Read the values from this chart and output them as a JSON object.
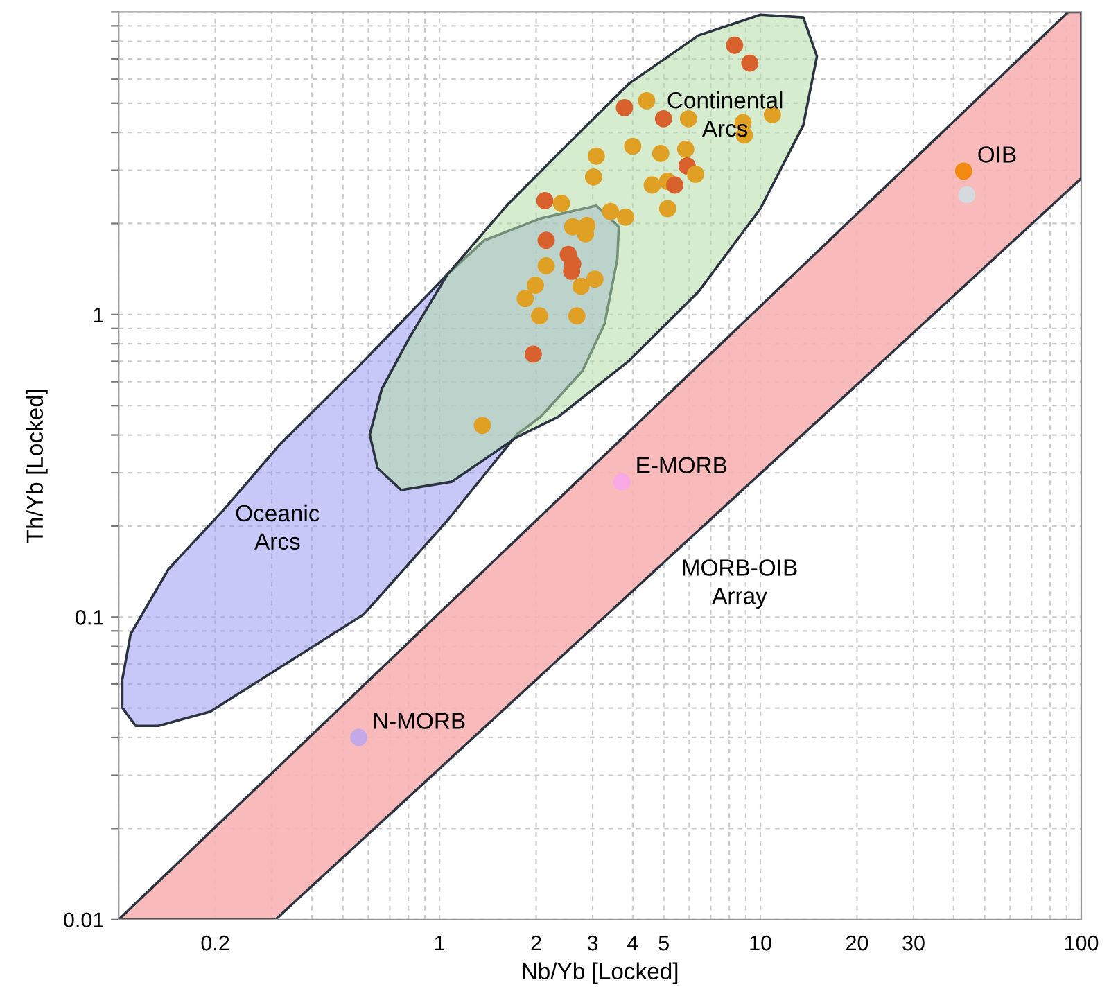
{
  "chart_data": {
    "type": "scatter",
    "xlabel": "Nb/Yb [Locked]",
    "ylabel": "Th/Yb [Locked]",
    "log": "xy",
    "grid": true,
    "xlim": [
      0.1,
      100
    ],
    "ylim": [
      0.01,
      10
    ],
    "xticks": [
      {
        "value": 0.1,
        "label": null
      },
      0.2,
      {
        "value": 0.3,
        "label": null
      },
      {
        "value": 0.4,
        "label": null
      },
      {
        "value": 0.5,
        "label": null
      },
      {
        "value": 0.6,
        "label": null
      },
      {
        "value": 0.7,
        "label": null
      },
      {
        "value": 0.8,
        "label": null
      },
      {
        "value": 0.9,
        "label": null
      },
      1,
      2,
      3,
      4,
      5,
      {
        "value": 6,
        "label": null
      },
      {
        "value": 7,
        "label": null
      },
      {
        "value": 8,
        "label": null
      },
      {
        "value": 9,
        "label": null
      },
      10,
      20,
      30,
      {
        "value": 40,
        "label": null
      },
      {
        "value": 50,
        "label": null
      },
      {
        "value": 60,
        "label": null
      },
      {
        "value": 70,
        "label": null
      },
      {
        "value": 80,
        "label": null
      },
      {
        "value": 90,
        "label": null
      },
      100
    ],
    "yticks": [
      0.01,
      {
        "value": 0.02,
        "label": null
      },
      {
        "value": 0.03,
        "label": null
      },
      {
        "value": 0.04,
        "label": null
      },
      {
        "value": 0.05,
        "label": null
      },
      {
        "value": 0.06,
        "label": null
      },
      {
        "value": 0.07,
        "label": null
      },
      {
        "value": 0.08,
        "label": null
      },
      {
        "value": 0.09,
        "label": null
      },
      0.1,
      {
        "value": 0.2,
        "label": null
      },
      {
        "value": 0.3,
        "label": null
      },
      {
        "value": 0.4,
        "label": null
      },
      {
        "value": 0.5,
        "label": null
      },
      {
        "value": 0.6,
        "label": null
      },
      {
        "value": 0.7,
        "label": null
      },
      {
        "value": 0.8,
        "label": null
      },
      {
        "value": 0.9,
        "label": null
      },
      1,
      {
        "value": 2,
        "label": null
      },
      {
        "value": 3,
        "label": null
      },
      {
        "value": 4,
        "label": null
      },
      {
        "value": 5,
        "label": null
      },
      {
        "value": 6,
        "label": null
      },
      {
        "value": 7,
        "label": null
      },
      {
        "value": 8,
        "label": null
      },
      {
        "value": 9,
        "label": null
      },
      {
        "value": 10,
        "label": null
      }
    ],
    "series": [
      {
        "type": "area",
        "name": "MORB-OIB\nArray",
        "color": "#f7b3b3",
        "x": [
          0.1,
          91,
          100,
          100,
          0.308
        ],
        "values": [
          0.01,
          10,
          10,
          2.82,
          0.01
        ]
      },
      {
        "type": "area",
        "name": "Oceanic\nArcs",
        "color": "#9a9af2",
        "x": [
          0.1026,
          0.1026,
          0.109,
          0.143,
          0.213,
          0.318,
          0.58,
          1.06,
          1.38,
          2.07,
          3.08,
          3.62,
          3.58,
          3.27,
          2.79,
          2.07,
          1.74,
          1.06,
          0.58,
          0.193,
          0.133,
          0.113
        ],
        "values": [
          0.0502,
          0.062,
          0.0879,
          0.144,
          0.227,
          0.372,
          0.701,
          1.36,
          1.76,
          2.08,
          2.29,
          1.95,
          1.52,
          0.933,
          0.652,
          0.46,
          0.401,
          0.209,
          0.102,
          0.0487,
          0.0437,
          0.0437
        ]
      },
      {
        "type": "area",
        "name": "Continental\nArcs",
        "color": "#b2dca8",
        "x": [
          1.06,
          1.63,
          2.35,
          3.88,
          6.41,
          10.0,
          13.6,
          15.0,
          13.6,
          10.0,
          6.41,
          3.88,
          2.35,
          1.74,
          1.09,
          0.759,
          0.641,
          0.606,
          0.661,
          0.806
        ],
        "values": [
          1.36,
          2.31,
          3.41,
          5.78,
          8.37,
          9.8,
          9.6,
          7.14,
          4.22,
          2.24,
          1.19,
          0.701,
          0.46,
          0.393,
          0.28,
          0.263,
          0.311,
          0.401,
          0.568,
          0.839
        ]
      },
      {
        "marker": "circle",
        "x": [
          8.31,
          9.27,
          3.77,
          4.99,
          5.97,
          8.83,
          10.9,
          8.91,
          4.0,
          4.89,
          5.85,
          3.08,
          3.02,
          5.91,
          6.28,
          4.6,
          5.14,
          5.41,
          5.14,
          2.13,
          2.4,
          3.41,
          3.8,
          2.6,
          2.88,
          2.85,
          2.15,
          2.52,
          2.6,
          2.58,
          2.15,
          3.05,
          2.76,
          1.99,
          1.85,
          2.05,
          2.68,
          1.96,
          1.36,
          4.42
        ],
        "values": [
          7.77,
          6.78,
          4.83,
          4.44,
          4.44,
          4.31,
          4.58,
          3.92,
          3.6,
          3.41,
          3.52,
          3.34,
          2.85,
          3.1,
          2.91,
          2.68,
          2.76,
          2.68,
          2.24,
          2.38,
          2.33,
          2.19,
          2.1,
          1.95,
          1.97,
          1.85,
          1.76,
          1.58,
          1.47,
          1.39,
          1.45,
          1.31,
          1.24,
          1.25,
          1.13,
          0.99,
          0.99,
          0.74,
          0.43,
          5.09
        ],
        "colors": [
          "#d8602c",
          "#d8602c",
          "#d8602c",
          "#d8602c",
          "#e0a024",
          "#e0a024",
          "#e0a024",
          "#e0a024",
          "#e0a024",
          "#e0a024",
          "#e0a024",
          "#e0a024",
          "#e0a024",
          "#d8602c",
          "#e0a024",
          "#e0a024",
          "#e0a024",
          "#d8602c",
          "#e0a024",
          "#d8602c",
          "#e0a024",
          "#e0a024",
          "#e0a024",
          "#e0a024",
          "#e0a024",
          "#e0a024",
          "#d8602c",
          "#d8602c",
          "#d8602c",
          "#d8602c",
          "#e0a024",
          "#e0a024",
          "#e0a024",
          "#e0a024",
          "#e0a024",
          "#e0a024",
          "#e0a024",
          "#d8602c",
          "#e0a024",
          "#e0a024"
        ]
      },
      {
        "marker": "circle",
        "x": [
          0.56,
          3.7,
          44,
          43
        ],
        "values": [
          0.04,
          0.28,
          2.49,
          2.98
        ],
        "colors": [
          "#c4a8e8",
          "#f8a8e4",
          "#d4dadd",
          "#f28a10"
        ]
      }
    ],
    "annotations": [
      {
        "text": "N-MORB",
        "x": 0.56,
        "y": 0.04
      },
      {
        "text": "E-MORB",
        "x": 3.7,
        "y": 0.28
      },
      {
        "text": "OIB",
        "x": 43,
        "y": 2.98
      }
    ]
  }
}
